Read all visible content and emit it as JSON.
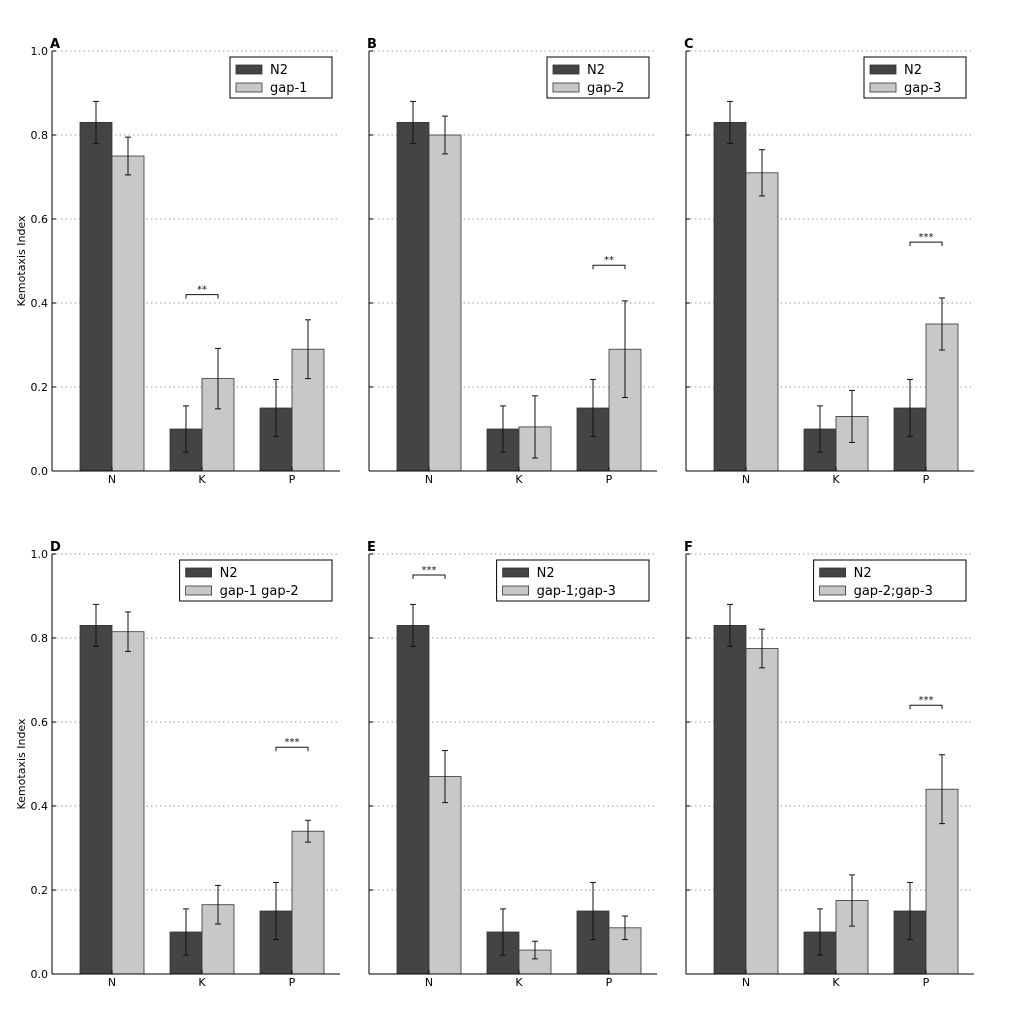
{
  "chart_data": [
    {
      "type": "bar",
      "panel_label": "A",
      "categories": [
        "N",
        "K",
        "P"
      ],
      "ylabel": "Kemotaxis Index",
      "ylim": [
        0,
        1.0
      ],
      "yticks": [
        "0.0",
        "0.2",
        "0.4",
        "0.6",
        "0.8",
        "1.0"
      ],
      "grid": true,
      "legend_position": "top-right",
      "series": [
        {
          "name": "N2",
          "color": "#444444",
          "values": [
            0.83,
            0.1,
            0.15
          ],
          "errors": [
            0.05,
            0.055,
            0.068
          ]
        },
        {
          "name": "gap-1",
          "color": "#c8c8c8",
          "values": [
            0.75,
            0.22,
            0.29
          ],
          "errors": [
            0.045,
            0.072,
            0.07
          ]
        }
      ],
      "annotations": [
        {
          "category": "K",
          "text": "**",
          "y": 0.42
        }
      ]
    },
    {
      "type": "bar",
      "panel_label": "B",
      "categories": [
        "N",
        "K",
        "P"
      ],
      "ylabel": "",
      "ylim": [
        0,
        1.0
      ],
      "yticks": [
        "",
        "",
        "",
        "",
        "",
        ""
      ],
      "grid": true,
      "legend_position": "top-right",
      "series": [
        {
          "name": "N2",
          "color": "#444444",
          "values": [
            0.83,
            0.1,
            0.15
          ],
          "errors": [
            0.05,
            0.055,
            0.068
          ]
        },
        {
          "name": "gap-2",
          "color": "#c8c8c8",
          "values": [
            0.8,
            0.105,
            0.29
          ],
          "errors": [
            0.045,
            0.074,
            0.115
          ]
        }
      ],
      "annotations": [
        {
          "category": "P",
          "text": "**",
          "y": 0.49
        }
      ]
    },
    {
      "type": "bar",
      "panel_label": "C",
      "categories": [
        "N",
        "K",
        "P"
      ],
      "ylabel": "",
      "ylim": [
        0,
        1.0
      ],
      "yticks": [
        "",
        "",
        "",
        "",
        "",
        ""
      ],
      "grid": true,
      "legend_position": "top-right",
      "series": [
        {
          "name": "N2",
          "color": "#444444",
          "values": [
            0.83,
            0.1,
            0.15
          ],
          "errors": [
            0.05,
            0.055,
            0.068
          ]
        },
        {
          "name": "gap-3",
          "color": "#c8c8c8",
          "values": [
            0.71,
            0.13,
            0.35
          ],
          "errors": [
            0.055,
            0.062,
            0.062
          ]
        }
      ],
      "annotations": [
        {
          "category": "P",
          "text": "***",
          "y": 0.545
        }
      ]
    },
    {
      "type": "bar",
      "panel_label": "D",
      "categories": [
        "N",
        "K",
        "P"
      ],
      "ylabel": "Kemotaxis Index",
      "ylim": [
        0,
        1.0
      ],
      "yticks": [
        "0.0",
        "0.2",
        "0.4",
        "0.6",
        "0.8",
        "1.0"
      ],
      "grid": true,
      "legend_position": "top-right",
      "series": [
        {
          "name": "N2",
          "color": "#444444",
          "values": [
            0.83,
            0.1,
            0.15
          ],
          "errors": [
            0.05,
            0.055,
            0.068
          ]
        },
        {
          "name": "gap-1 gap-2",
          "color": "#c8c8c8",
          "values": [
            0.815,
            0.165,
            0.34
          ],
          "errors": [
            0.047,
            0.046,
            0.026
          ]
        }
      ],
      "annotations": [
        {
          "category": "P",
          "text": "***",
          "y": 0.54
        }
      ]
    },
    {
      "type": "bar",
      "panel_label": "E",
      "categories": [
        "N",
        "K",
        "P"
      ],
      "ylabel": "",
      "ylim": [
        0,
        1.0
      ],
      "yticks": [
        "",
        "",
        "",
        "",
        "",
        ""
      ],
      "grid": true,
      "legend_position": "top-right",
      "series": [
        {
          "name": "N2",
          "color": "#444444",
          "values": [
            0.83,
            0.1,
            0.15
          ],
          "errors": [
            0.05,
            0.055,
            0.068
          ]
        },
        {
          "name": "gap-1;gap-3",
          "color": "#c8c8c8",
          "values": [
            0.47,
            0.057,
            0.11
          ],
          "errors": [
            0.062,
            0.021,
            0.028
          ]
        }
      ],
      "annotations": [
        {
          "category": "N",
          "text": "***",
          "y": 0.95
        }
      ]
    },
    {
      "type": "bar",
      "panel_label": "F",
      "categories": [
        "N",
        "K",
        "P"
      ],
      "ylabel": "",
      "ylim": [
        0,
        1.0
      ],
      "yticks": [
        "",
        "",
        "",
        "",
        "",
        ""
      ],
      "grid": true,
      "legend_position": "top-right",
      "series": [
        {
          "name": "N2",
          "color": "#444444",
          "values": [
            0.83,
            0.1,
            0.15
          ],
          "errors": [
            0.05,
            0.055,
            0.068
          ]
        },
        {
          "name": "gap-2;gap-3",
          "color": "#c8c8c8",
          "values": [
            0.775,
            0.175,
            0.44
          ],
          "errors": [
            0.046,
            0.061,
            0.082
          ]
        }
      ],
      "annotations": [
        {
          "category": "P",
          "text": "***",
          "y": 0.64
        }
      ]
    }
  ]
}
